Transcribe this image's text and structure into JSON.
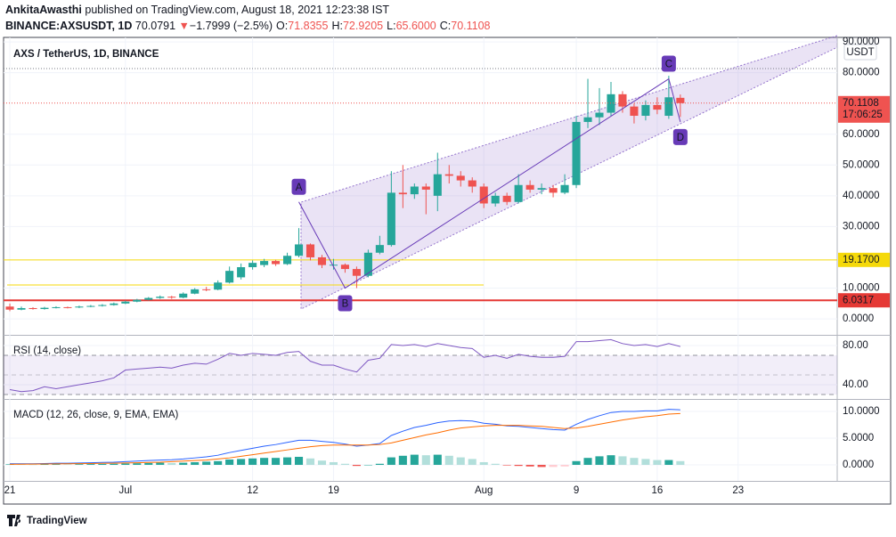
{
  "header": {
    "author": "AnkitaAwasthi",
    "published": "published on TradingView.com, August 18, 2021 12:23:38 IST",
    "symbol": "BINANCE:AXSUSDT, 1D",
    "last": "70.0791",
    "arrow": "▼",
    "change": "−1.7999 (−2.5%)",
    "ohlc": [
      {
        "key": "O:",
        "value": "71.8355"
      },
      {
        "key": "H:",
        "value": "72.9205"
      },
      {
        "key": "L:",
        "value": "65.6000"
      },
      {
        "key": "C:",
        "value": "70.1108"
      }
    ]
  },
  "footer": {
    "logo": "TradingView"
  },
  "chart_data": [
    {
      "type": "candlestick",
      "title": "AXS / TetherUS, 1D, BINANCE",
      "currency": "USDT",
      "up_color": "#26a69a",
      "down_color": "#ef5350",
      "grid": true,
      "open": [
        4,
        3,
        3.5,
        3.2,
        3.6,
        3.8,
        3.7,
        4,
        4.2,
        4.5,
        5,
        5.6,
        6.2,
        6.8,
        7.2,
        6.9,
        8.2,
        9.6,
        9.5,
        11.8,
        13.5,
        16.8,
        17.5,
        18.8,
        17.8,
        20.5,
        24.2,
        20,
        17.5,
        17.6,
        16.2,
        14,
        21.5,
        24,
        41,
        40.5,
        43,
        40,
        47,
        46.5,
        45,
        43,
        37.5,
        40,
        38,
        43.5,
        42,
        42.5,
        41,
        43.5,
        64,
        65.5,
        67,
        73,
        69,
        66,
        69.5,
        66,
        71.8355
      ],
      "high": [
        5,
        4,
        3.8,
        3.9,
        4.1,
        4,
        4.3,
        4.5,
        4.8,
        5.3,
        5.9,
        6.5,
        7.1,
        7.6,
        7.5,
        8.6,
        10,
        10.4,
        12.5,
        17,
        18,
        19,
        19.5,
        19.2,
        21.5,
        29.5,
        24.5,
        20.8,
        19.5,
        18,
        17,
        22.5,
        27,
        48,
        50,
        44,
        44,
        54,
        50,
        48,
        46,
        44,
        41,
        41,
        47,
        45,
        44,
        43.5,
        47,
        66,
        78,
        75,
        77,
        74,
        70,
        71,
        72,
        79,
        72.9205
      ],
      "low": [
        2.5,
        2.8,
        3,
        3,
        3.4,
        3.4,
        3.5,
        3.8,
        4,
        4.3,
        4.8,
        5.4,
        6,
        6.5,
        6.5,
        6.7,
        8,
        9,
        9.3,
        11.5,
        12.8,
        16,
        16.8,
        17.2,
        17.5,
        20,
        19,
        16.5,
        16,
        15,
        10,
        13.5,
        21,
        23.5,
        36,
        39,
        34,
        35,
        44,
        43,
        41,
        36,
        36.5,
        37,
        37.5,
        41,
        40.5,
        39.5,
        40.5,
        42.5,
        62,
        63,
        66,
        67,
        63.5,
        64.5,
        66.5,
        65,
        65.6
      ],
      "close": [
        3,
        3.5,
        3.2,
        3.6,
        3.8,
        3.7,
        4,
        4.2,
        4.5,
        5,
        5.6,
        6.2,
        6.8,
        7.2,
        6.9,
        8.2,
        9.6,
        9.5,
        11.8,
        15.6,
        16.8,
        18.2,
        18.8,
        17.8,
        20.5,
        24.2,
        20,
        17.5,
        17.6,
        16.2,
        14,
        21.5,
        24,
        41,
        40.5,
        43,
        42,
        47,
        46.5,
        45,
        43,
        37.5,
        40,
        38,
        43.5,
        42,
        42.5,
        41,
        43.5,
        64,
        65.5,
        67,
        73,
        69,
        66,
        69.5,
        68,
        72,
        70.1108
      ],
      "xlim": [
        -0.85,
        71.57
      ],
      "xticks": [
        {
          "value": 0,
          "label": "21"
        },
        {
          "value": 10,
          "label": "Jul"
        },
        {
          "value": 21,
          "label": "12"
        },
        {
          "value": 28,
          "label": "19"
        },
        {
          "value": 41,
          "label": "Aug"
        },
        {
          "value": 49,
          "label": "9"
        },
        {
          "value": 56,
          "label": "16"
        },
        {
          "value": 63,
          "label": "23"
        }
      ],
      "ylim": [
        -4.9,
        90.6
      ],
      "yticks": [
        {
          "value": 0,
          "label": "0.0000"
        },
        {
          "value": 10,
          "label": "10.0000"
        },
        {
          "value": 30,
          "label": "30.0000"
        },
        {
          "value": 40,
          "label": "40.0000"
        },
        {
          "value": 50,
          "label": "50.0000"
        },
        {
          "value": 60,
          "label": "60.0000"
        },
        {
          "value": 80,
          "label": "80.0000"
        },
        {
          "value": 90,
          "label": "90.0000"
        }
      ],
      "hlines": [
        {
          "value": 19.17,
          "label": "19.1700",
          "color": "#f5d90a"
        },
        {
          "value": 6.0317,
          "label": "6.0317",
          "color": "#e53935"
        }
      ],
      "last_price": {
        "value": 70.1108,
        "label": "70.1108",
        "countdown": "17:06:25",
        "color": "#ef5350"
      },
      "pattern": {
        "color": "#673ab7",
        "points": [
          {
            "label": "A",
            "x": 25,
            "y": 38
          },
          {
            "label": "B",
            "x": 29,
            "y": 10
          },
          {
            "label": "C",
            "x": 57,
            "y": 78
          },
          {
            "label": "D",
            "x": 58,
            "y": 64
          }
        ]
      }
    },
    {
      "type": "line",
      "title": "RSI (14, close)",
      "color": "#7e57c2",
      "levels": [
        70,
        50,
        30
      ],
      "values": [
        35,
        33,
        34,
        38,
        36,
        38,
        40,
        42,
        44,
        47,
        55,
        56,
        57,
        58,
        57,
        60,
        62,
        61,
        66,
        72,
        70,
        72,
        71,
        70,
        73,
        74,
        64,
        60,
        60,
        56,
        53,
        65,
        67,
        81,
        80,
        81,
        79,
        82,
        80,
        78,
        77,
        68,
        70,
        67,
        71,
        69,
        68,
        68,
        69,
        84,
        84,
        85,
        86,
        82,
        80,
        81,
        79,
        82,
        79
      ],
      "ylim": [
        26.4,
        89.1
      ],
      "yticks": [
        {
          "value": 40,
          "label": "40.00"
        },
        {
          "value": 80,
          "label": "80.00"
        }
      ]
    },
    {
      "type": "macd",
      "title": "MACD (12, 26, close, 9, EMA, EMA)",
      "histogram_colors": [
        "#26a69a",
        "#b2dfdb",
        "#ffcdd2",
        "#ef5350"
      ],
      "series": [
        {
          "name": "MACD",
          "color": "#2962ff",
          "values": [
            0.2,
            0.2,
            0.2,
            0.25,
            0.3,
            0.3,
            0.35,
            0.4,
            0.45,
            0.5,
            0.6,
            0.7,
            0.8,
            0.9,
            0.95,
            1.1,
            1.3,
            1.5,
            1.8,
            2.3,
            2.7,
            3.1,
            3.5,
            3.8,
            4.2,
            4.6,
            4.6,
            4.4,
            4.2,
            3.9,
            3.5,
            3.7,
            4,
            5.5,
            6.3,
            7,
            7.4,
            7.9,
            8.2,
            8.3,
            8.2,
            7.8,
            7.6,
            7.3,
            7.2,
            7,
            6.8,
            6.6,
            6.5,
            7.6,
            8.5,
            9.2,
            9.8,
            10,
            10,
            10.1,
            10.1,
            10.4,
            10.3
          ]
        },
        {
          "name": "Signal",
          "color": "#ff6d00",
          "values": [
            0.1,
            0.12,
            0.14,
            0.16,
            0.18,
            0.2,
            0.22,
            0.25,
            0.28,
            0.3,
            0.35,
            0.4,
            0.45,
            0.5,
            0.6,
            0.7,
            0.8,
            0.9,
            1.1,
            1.3,
            1.6,
            1.9,
            2.2,
            2.5,
            2.8,
            3.1,
            3.4,
            3.6,
            3.7,
            3.7,
            3.7,
            3.7,
            3.8,
            4.1,
            4.6,
            5.1,
            5.6,
            6,
            6.5,
            6.9,
            7.1,
            7.3,
            7.4,
            7.4,
            7.4,
            7.3,
            7.2,
            7,
            6.8,
            6.9,
            7.2,
            7.6,
            8,
            8.4,
            8.7,
            9,
            9.2,
            9.5,
            9.6
          ]
        }
      ],
      "histogram": [
        0.1,
        0.08,
        0.06,
        0.09,
        0.12,
        0.1,
        0.13,
        0.15,
        0.17,
        0.2,
        0.25,
        0.3,
        0.35,
        0.4,
        0.35,
        0.4,
        0.5,
        0.6,
        0.7,
        1,
        1.1,
        1.2,
        1.3,
        1.3,
        1.4,
        1.5,
        1.2,
        0.8,
        0.5,
        0.2,
        -0.2,
        0,
        0.2,
        1.4,
        1.7,
        1.9,
        1.8,
        1.9,
        1.7,
        1.4,
        1.1,
        0.5,
        0.2,
        -0.1,
        -0.2,
        -0.3,
        -0.4,
        -0.4,
        -0.3,
        0.7,
        1.3,
        1.6,
        1.8,
        1.6,
        1.3,
        1.1,
        0.9,
        0.9,
        0.7
      ],
      "ylim": [
        -2.67,
        12
      ],
      "yticks": [
        {
          "value": 0,
          "label": "0.0000"
        },
        {
          "value": 5,
          "label": "5.0000"
        },
        {
          "value": 10,
          "label": "10.0000"
        }
      ]
    }
  ]
}
